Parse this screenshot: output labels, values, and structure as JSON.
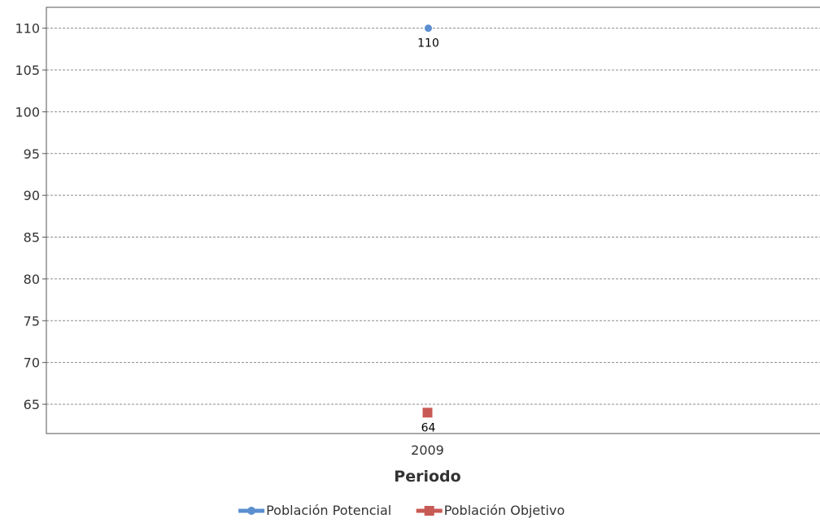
{
  "chart_data": {
    "type": "line",
    "categories": [
      "2009"
    ],
    "series": [
      {
        "name": "Población Potencial",
        "values": [
          110
        ],
        "color": "#5b8fd0",
        "marker": "circle"
      },
      {
        "name": "Población Objetivo",
        "values": [
          64
        ],
        "color": "#c85a55",
        "marker": "square"
      }
    ],
    "title": "",
    "xlabel": "Periodo",
    "ylabel": "",
    "ylim": [
      61.5,
      112.5
    ],
    "yticks": [
      65,
      70,
      75,
      80,
      85,
      90,
      95,
      100,
      105,
      110
    ],
    "grid": true,
    "legend_position": "bottom-center",
    "data_labels": true
  }
}
